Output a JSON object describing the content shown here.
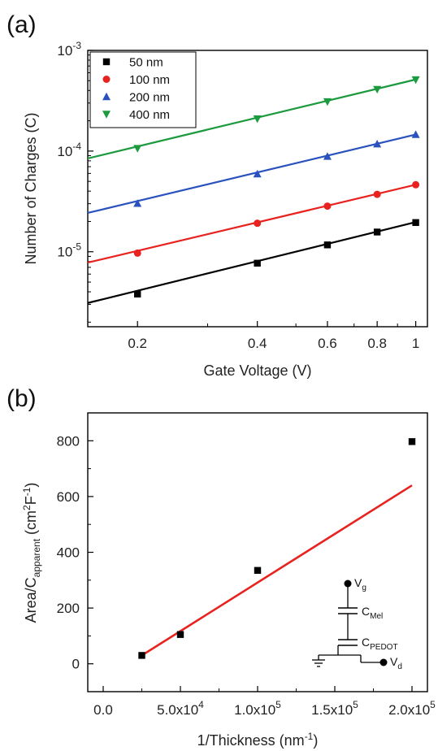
{
  "chart_data": [
    {
      "type": "scatter",
      "panel_label": "(a)",
      "xlabel": "Gate Voltage (V)",
      "ylabel": "Number of Charges (C)",
      "xscale": "log",
      "yscale": "log",
      "xlim": [
        0.15,
        1.07
      ],
      "ylim": [
        1.8e-06,
        0.001
      ],
      "xticks": [
        {
          "v": 0.2,
          "label": "0.2"
        },
        {
          "v": 0.4,
          "label": "0.4"
        },
        {
          "v": 0.6,
          "label": "0.6"
        },
        {
          "v": 0.8,
          "label": "0.8"
        },
        {
          "v": 1.0,
          "label": "1"
        }
      ],
      "yticks": [
        {
          "v": 1e-05,
          "base": "10",
          "exp": "-5"
        },
        {
          "v": 0.0001,
          "base": "10",
          "exp": "-4"
        },
        {
          "v": 0.001,
          "base": "10",
          "exp": "-3"
        }
      ],
      "legend_position": "top-left",
      "x": [
        0.2,
        0.4,
        0.6,
        0.8,
        1.0
      ],
      "series": [
        {
          "name": "50 nm",
          "marker": "square",
          "color": "#000000",
          "values": [
            3.8e-06,
            7.7e-06,
            1.17e-05,
            1.57e-05,
            1.95e-05
          ],
          "fit": [
            3.1e-06,
            1.97e-05
          ]
        },
        {
          "name": "100 nm",
          "marker": "circle",
          "color": "#e8231f",
          "values": [
            9.7e-06,
            1.92e-05,
            2.84e-05,
            3.72e-05,
            4.63e-05
          ],
          "fit": [
            7.8e-06,
            4.63e-05
          ]
        },
        {
          "name": "200 nm",
          "marker": "triangle-up",
          "color": "#2a52be",
          "values": [
            3.02e-05,
            5.92e-05,
            8.85e-05,
            0.0001175,
            0.000146
          ],
          "fit": [
            2.43e-05,
            0.000146
          ]
        },
        {
          "name": "400 nm",
          "marker": "triangle-down",
          "color": "#1b9a3e",
          "values": [
            0.0001063,
            0.0002092,
            0.0003095,
            0.00041,
            0.000512
          ],
          "fit": [
            8.45e-05,
            0.000514
          ]
        }
      ]
    },
    {
      "type": "scatter",
      "panel_label": "(b)",
      "xlabel_main": "1/Thickness (nm",
      "xlabel_sup": "-1",
      "xlabel_end": ")",
      "ylabel_main": "Area/C",
      "ylabel_sub": "apparent",
      "ylabel_mid": " (cm",
      "ylabel_sup1": "2",
      "ylabel_mid2": "F",
      "ylabel_sup2": "-1",
      "ylabel_end": ")",
      "xlim": [
        -10000,
        210000
      ],
      "ylim": [
        -100,
        900
      ],
      "xticks": [
        {
          "v": 0,
          "label": "0.0"
        },
        {
          "v": 50000,
          "mant": "5.0x10",
          "exp": "4"
        },
        {
          "v": 100000,
          "mant": "1.0x10",
          "exp": "5"
        },
        {
          "v": 150000,
          "mant": "1.5x10",
          "exp": "5"
        },
        {
          "v": 200000,
          "mant": "2.0x10",
          "exp": "5"
        }
      ],
      "yticks": [
        0,
        200,
        400,
        600,
        800
      ],
      "points": [
        {
          "x": 25000,
          "y": 30
        },
        {
          "x": 50000,
          "y": 105
        },
        {
          "x": 100000,
          "y": 335
        },
        {
          "x": 200000,
          "y": 797
        }
      ],
      "fit_line": {
        "x": [
          25000,
          200000
        ],
        "y": [
          30,
          640
        ],
        "color": "#e8231f"
      },
      "inset_circuit": {
        "vg": "V",
        "vg_sub": "g",
        "cmel": "C",
        "cmel_sub": "Mel",
        "cpedot": "C",
        "cpedot_sub": "PEDOT",
        "vd": "V",
        "vd_sub": "d"
      }
    }
  ]
}
